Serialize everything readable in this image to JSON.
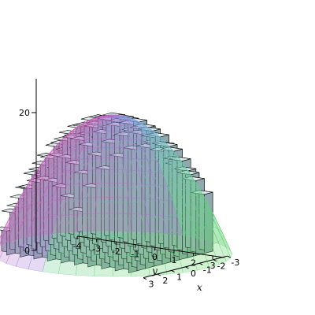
{
  "chart_data": {
    "type": "3d-bar-surface",
    "description_of_elements": [
      "histogram prisms",
      "paraboloid mesh surface"
    ],
    "function": "z = 25 - x^2 - y^2",
    "x_ticks": [
      "-3",
      "-2",
      "-1",
      "0",
      "1",
      "2",
      "3"
    ],
    "y_ticks": [
      "-4",
      "-3",
      "-2",
      "-1",
      "0",
      "1",
      "2",
      "3"
    ],
    "z_ticks": [
      "0",
      "20"
    ],
    "xlabel": "x",
    "ylabel": "y",
    "xlim": [
      -3,
      3
    ],
    "ylim": [
      -4,
      3
    ],
    "zlim": [
      0,
      25
    ],
    "bar_color": "#9bb4b9",
    "bar_top_color": "#dfe9eb",
    "edge_color": "#000000",
    "surface_colors": [
      "#e0559a",
      "#a676d8",
      "#7aa6e8",
      "#6ccf9a",
      "#55d24a"
    ]
  }
}
